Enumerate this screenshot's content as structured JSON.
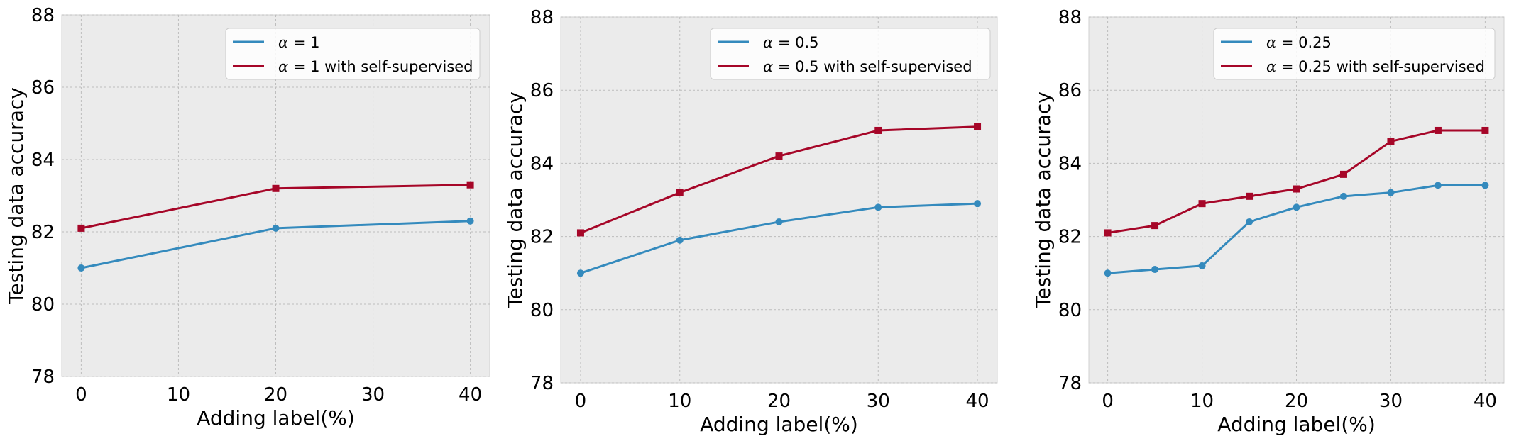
{
  "colors": {
    "background": "#ebebeb",
    "grid": "#bdbdbd",
    "series_plain": "#348abd",
    "series_self_supervised": "#a60628"
  },
  "chart_data": [
    {
      "type": "line",
      "xlabel": "Adding label(%)",
      "ylabel": "Testing data accuracy",
      "xlim": [
        -2,
        42
      ],
      "ylim": [
        78,
        88
      ],
      "xticks": [
        0,
        10,
        20,
        30,
        40
      ],
      "yticks": [
        78,
        80,
        82,
        84,
        86,
        88
      ],
      "grid": true,
      "legend_position": "top-right",
      "series": [
        {
          "name": "α = 1",
          "color": "#348abd",
          "marker": "circle",
          "x": [
            0,
            20,
            40
          ],
          "y": [
            81.0,
            82.1,
            82.3
          ]
        },
        {
          "name": "α = 1 with self-supervised",
          "color": "#a60628",
          "marker": "square",
          "x": [
            0,
            20,
            40
          ],
          "y": [
            82.1,
            83.2,
            83.3
          ]
        }
      ]
    },
    {
      "type": "line",
      "xlabel": "Adding label(%)",
      "ylabel": "Testing data accuracy",
      "xlim": [
        -2,
        42
      ],
      "ylim": [
        78,
        88
      ],
      "xticks": [
        0,
        10,
        20,
        30,
        40
      ],
      "yticks": [
        78,
        80,
        82,
        84,
        86,
        88
      ],
      "grid": true,
      "legend_position": "top-right",
      "series": [
        {
          "name": "α = 0.5",
          "color": "#348abd",
          "marker": "circle",
          "x": [
            0,
            10,
            20,
            30,
            40
          ],
          "y": [
            81.0,
            81.9,
            82.4,
            82.8,
            82.9
          ]
        },
        {
          "name": "α = 0.5 with self-supervised",
          "color": "#a60628",
          "marker": "square",
          "x": [
            0,
            10,
            20,
            30,
            40
          ],
          "y": [
            82.1,
            83.2,
            84.2,
            84.9,
            85.0
          ]
        }
      ]
    },
    {
      "type": "line",
      "xlabel": "Adding label(%)",
      "ylabel": "Testing data accuracy",
      "xlim": [
        -2,
        42
      ],
      "ylim": [
        78,
        88
      ],
      "xticks": [
        0,
        10,
        20,
        30,
        40
      ],
      "yticks": [
        78,
        80,
        82,
        84,
        86,
        88
      ],
      "grid": true,
      "legend_position": "top-right",
      "series": [
        {
          "name": "α = 0.25",
          "color": "#348abd",
          "marker": "circle",
          "x": [
            0,
            5,
            10,
            15,
            20,
            25,
            30,
            35,
            40
          ],
          "y": [
            81.0,
            81.1,
            81.2,
            82.4,
            82.8,
            83.1,
            83.2,
            83.4,
            83.4
          ]
        },
        {
          "name": "α = 0.25 with self-supervised",
          "color": "#a60628",
          "marker": "square",
          "x": [
            0,
            5,
            10,
            15,
            20,
            25,
            30,
            35,
            40
          ],
          "y": [
            82.1,
            82.3,
            82.9,
            83.1,
            83.3,
            83.7,
            84.6,
            84.9,
            84.9
          ]
        }
      ]
    }
  ]
}
